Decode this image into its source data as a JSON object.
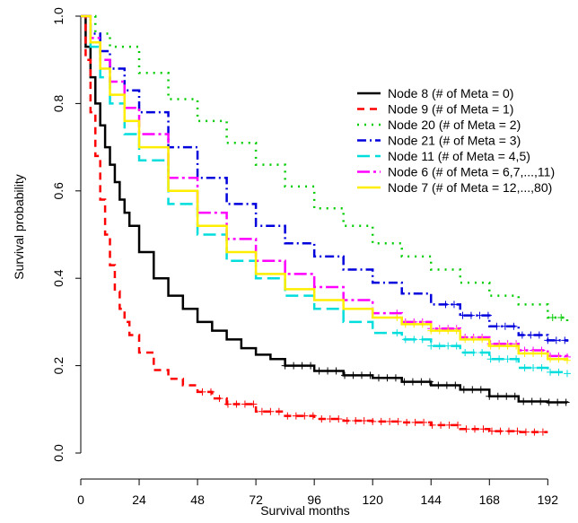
{
  "chart_data": {
    "type": "line",
    "xlabel": "Survival months",
    "ylabel": "Survival probability",
    "xlim": [
      0,
      200
    ],
    "ylim": [
      0,
      1
    ],
    "x_ticks": [
      0,
      24,
      48,
      72,
      96,
      120,
      144,
      168,
      192
    ],
    "y_ticks": [
      0.0,
      0.2,
      0.4,
      0.6,
      0.8,
      1.0
    ],
    "y_tick_labels": [
      "0.0",
      "0.2",
      "0.4",
      "0.6",
      "0.8",
      "1.0"
    ],
    "grid": false,
    "legend_position": "top-right",
    "series": [
      {
        "name": "Node 8 (# of Meta = 0)",
        "color": "#000000",
        "dash": "solid",
        "x": [
          0,
          2,
          4,
          6,
          8,
          10,
          12,
          14,
          16,
          18,
          20,
          24,
          30,
          36,
          42,
          48,
          54,
          60,
          66,
          72,
          78,
          84,
          96,
          108,
          120,
          132,
          144,
          156,
          168,
          180,
          192,
          200
        ],
        "y": [
          1.0,
          0.93,
          0.86,
          0.8,
          0.75,
          0.7,
          0.66,
          0.62,
          0.58,
          0.55,
          0.52,
          0.46,
          0.4,
          0.36,
          0.33,
          0.3,
          0.28,
          0.26,
          0.24,
          0.225,
          0.215,
          0.2,
          0.188,
          0.178,
          0.172,
          0.163,
          0.155,
          0.145,
          0.13,
          0.118,
          0.116,
          0.115
        ],
        "censor_from": 84
      },
      {
        "name": "Node 9 (# of Meta = 1)",
        "color": "#ff0000",
        "dash": "8,6",
        "x": [
          0,
          2,
          4,
          6,
          8,
          10,
          12,
          14,
          16,
          18,
          20,
          24,
          30,
          36,
          42,
          48,
          54,
          60,
          72,
          84,
          96,
          108,
          120,
          132,
          144,
          156,
          168,
          180,
          192
        ],
        "y": [
          1.0,
          0.9,
          0.78,
          0.68,
          0.58,
          0.5,
          0.43,
          0.37,
          0.33,
          0.3,
          0.27,
          0.23,
          0.19,
          0.17,
          0.155,
          0.14,
          0.125,
          0.112,
          0.095,
          0.085,
          0.078,
          0.074,
          0.072,
          0.07,
          0.064,
          0.055,
          0.05,
          0.048,
          0.048
        ],
        "censor_from": 50
      },
      {
        "name": "Node 20 (# of Meta = 2)",
        "color": "#00cc00",
        "dash": "2,6",
        "x": [
          0,
          6,
          12,
          24,
          36,
          48,
          60,
          72,
          84,
          96,
          108,
          120,
          132,
          144,
          156,
          168,
          180,
          192,
          200
        ],
        "y": [
          1.0,
          0.96,
          0.93,
          0.87,
          0.81,
          0.76,
          0.71,
          0.66,
          0.61,
          0.56,
          0.52,
          0.48,
          0.45,
          0.42,
          0.39,
          0.36,
          0.34,
          0.31,
          0.295
        ],
        "censor_from": 194
      },
      {
        "name": "Node 21 (# of Meta = 3)",
        "color": "#0000dd",
        "dash": "10,4,2,4",
        "x": [
          0,
          4,
          8,
          12,
          18,
          24,
          36,
          48,
          60,
          72,
          84,
          96,
          108,
          120,
          132,
          144,
          156,
          168,
          180,
          192,
          200
        ],
        "y": [
          1.0,
          0.96,
          0.92,
          0.88,
          0.83,
          0.78,
          0.7,
          0.63,
          0.57,
          0.52,
          0.48,
          0.45,
          0.42,
          0.39,
          0.365,
          0.34,
          0.315,
          0.29,
          0.27,
          0.258,
          0.255
        ],
        "censor_from": 150
      },
      {
        "name": "Node 11 (# of Meta = 4,5)",
        "color": "#00dddd",
        "dash": "14,6",
        "x": [
          0,
          4,
          8,
          12,
          18,
          24,
          36,
          48,
          60,
          72,
          84,
          96,
          108,
          120,
          132,
          144,
          156,
          168,
          180,
          192,
          200
        ],
        "y": [
          1.0,
          0.93,
          0.86,
          0.8,
          0.73,
          0.67,
          0.57,
          0.5,
          0.44,
          0.4,
          0.36,
          0.33,
          0.3,
          0.275,
          0.26,
          0.245,
          0.23,
          0.215,
          0.195,
          0.185,
          0.182
        ],
        "censor_from": 130
      },
      {
        "name": "Node 6 (# of Meta = 6,7,...,11)",
        "color": "#ff00ff",
        "dash": "14,4,3,4",
        "x": [
          0,
          4,
          8,
          12,
          18,
          24,
          36,
          48,
          60,
          72,
          84,
          96,
          108,
          120,
          132,
          144,
          156,
          168,
          180,
          192,
          200
        ],
        "y": [
          1.0,
          0.95,
          0.9,
          0.85,
          0.79,
          0.73,
          0.63,
          0.55,
          0.49,
          0.44,
          0.41,
          0.38,
          0.35,
          0.32,
          0.3,
          0.285,
          0.265,
          0.25,
          0.235,
          0.222,
          0.22
        ],
        "censor_from": 130
      },
      {
        "name": "Node 7 (# of Meta = 12,...,80)",
        "color": "#ffee00",
        "dash": "solid",
        "x": [
          0,
          4,
          8,
          12,
          18,
          24,
          36,
          48,
          60,
          72,
          84,
          96,
          108,
          120,
          132,
          144,
          156,
          168,
          180,
          192,
          200
        ],
        "y": [
          1.0,
          0.94,
          0.88,
          0.82,
          0.76,
          0.7,
          0.6,
          0.52,
          0.46,
          0.41,
          0.375,
          0.35,
          0.33,
          0.31,
          0.295,
          0.28,
          0.26,
          0.245,
          0.228,
          0.215,
          0.212
        ],
        "censor_from": 130
      }
    ]
  }
}
